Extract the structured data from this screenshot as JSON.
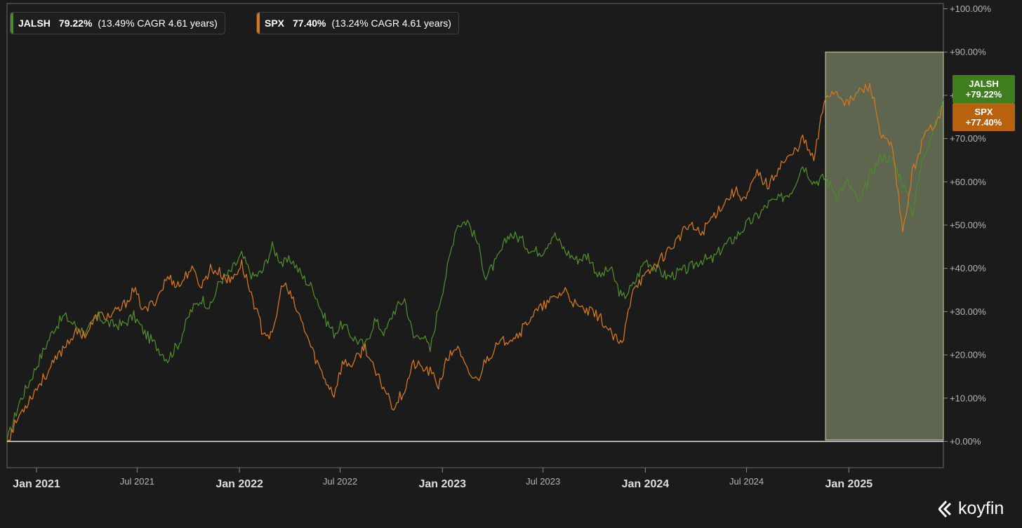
{
  "brand": {
    "name": "koyfin"
  },
  "legend": [
    {
      "name": "JALSH",
      "value": "79.22%",
      "cagr": "(13.49% CAGR 4.61 years)",
      "color": "#4e8a2c"
    },
    {
      "name": "SPX",
      "value": "77.40%",
      "cagr": "(13.24% CAGR 4.61 years)",
      "color": "#d2771d"
    }
  ],
  "tags": [
    {
      "name": "JALSH",
      "value": "+79.22%",
      "color": "#3f7d1e"
    },
    {
      "name": "SPX",
      "value": "+77.40%",
      "color": "#b8620f"
    }
  ],
  "chart_data": {
    "type": "line",
    "title": "",
    "xlabel": "",
    "ylabel": "",
    "ylim": [
      -6,
      102
    ],
    "yticks": [
      0,
      10,
      20,
      30,
      40,
      50,
      60,
      70,
      80,
      90,
      100
    ],
    "ytick_labels": [
      "+0.00%",
      "+10.00%",
      "+20.00%",
      "+30.00%",
      "+40.00%",
      "+50.00%",
      "+60.00%",
      "+70.00%",
      "+80.00%",
      "+90.00%",
      "+100.00%"
    ],
    "x_range": [
      "2020-11-09",
      "2025-06-20"
    ],
    "xticks": [
      {
        "date": "2021-01-01",
        "label": "Jan 2021",
        "major": true
      },
      {
        "date": "2021-07-01",
        "label": "Jul 2021",
        "major": false
      },
      {
        "date": "2022-01-01",
        "label": "Jan 2022",
        "major": true
      },
      {
        "date": "2022-07-01",
        "label": "Jul 2022",
        "major": false
      },
      {
        "date": "2023-01-01",
        "label": "Jan 2023",
        "major": true
      },
      {
        "date": "2023-07-01",
        "label": "Jul 2023",
        "major": false
      },
      {
        "date": "2024-01-01",
        "label": "Jan 2024",
        "major": true
      },
      {
        "date": "2024-07-01",
        "label": "Jul 2024",
        "major": false
      },
      {
        "date": "2025-01-01",
        "label": "Jan 2025",
        "major": true
      }
    ],
    "highlight": {
      "from": "2024-11-20",
      "to": "2025-06-20",
      "ymax": 90
    },
    "series": [
      {
        "name": "JALSH",
        "color": "#4e8a2c",
        "x": [
          "2020-11-09",
          "2020-12-01",
          "2020-12-20",
          "2021-01-10",
          "2021-02-01",
          "2021-02-20",
          "2021-03-10",
          "2021-04-01",
          "2021-04-20",
          "2021-05-15",
          "2021-06-05",
          "2021-06-25",
          "2021-07-15",
          "2021-08-05",
          "2021-08-25",
          "2021-09-15",
          "2021-10-05",
          "2021-10-25",
          "2021-11-10",
          "2021-11-26",
          "2021-12-15",
          "2022-01-05",
          "2022-01-25",
          "2022-02-10",
          "2022-03-01",
          "2022-03-20",
          "2022-04-05",
          "2022-04-25",
          "2022-05-15",
          "2022-06-01",
          "2022-06-20",
          "2022-07-05",
          "2022-07-25",
          "2022-08-15",
          "2022-09-01",
          "2022-09-20",
          "2022-10-05",
          "2022-10-25",
          "2022-11-10",
          "2022-11-25",
          "2022-12-10",
          "2022-12-25",
          "2023-01-10",
          "2023-01-26",
          "2023-02-15",
          "2023-03-05",
          "2023-03-20",
          "2023-04-10",
          "2023-05-01",
          "2023-05-20",
          "2023-06-10",
          "2023-06-30",
          "2023-07-20",
          "2023-08-10",
          "2023-08-30",
          "2023-09-20",
          "2023-10-10",
          "2023-10-30",
          "2023-11-20",
          "2023-12-10",
          "2024-01-01",
          "2024-01-20",
          "2024-02-10",
          "2024-03-01",
          "2024-03-20",
          "2024-04-10",
          "2024-05-01",
          "2024-05-20",
          "2024-06-10",
          "2024-06-30",
          "2024-07-20",
          "2024-08-10",
          "2024-08-30",
          "2024-09-20",
          "2024-10-10",
          "2024-10-30",
          "2024-11-20",
          "2024-12-10",
          "2024-12-30",
          "2025-01-20",
          "2025-02-10",
          "2025-03-01",
          "2025-03-20",
          "2025-04-08",
          "2025-04-25",
          "2025-05-15",
          "2025-06-05",
          "2025-06-20"
        ],
        "values": [
          0,
          9,
          14,
          20,
          26,
          29,
          27,
          25,
          29,
          27,
          27,
          29,
          25,
          22,
          19,
          23,
          30,
          33,
          31,
          37,
          39,
          43,
          38,
          39,
          45,
          41,
          42,
          38,
          35,
          29,
          25,
          27,
          24,
          22,
          28,
          25,
          30,
          33,
          24,
          25,
          21,
          31,
          40,
          50,
          51,
          46,
          38,
          42,
          48,
          47,
          44,
          44,
          48,
          44,
          42,
          43,
          38,
          40,
          33,
          36,
          42,
          40,
          38,
          39,
          40,
          42,
          42,
          45,
          47,
          50,
          52,
          55,
          56,
          58,
          64,
          60,
          61,
          57,
          60,
          55,
          62,
          66,
          65,
          60,
          53,
          66,
          73,
          79.22
        ]
      },
      {
        "name": "SPX",
        "color": "#d2771d",
        "x": [
          "2020-11-09",
          "2020-12-01",
          "2020-12-20",
          "2021-01-10",
          "2021-02-01",
          "2021-02-20",
          "2021-03-10",
          "2021-04-01",
          "2021-04-20",
          "2021-05-15",
          "2021-06-05",
          "2021-06-25",
          "2021-07-15",
          "2021-08-05",
          "2021-08-25",
          "2021-09-15",
          "2021-10-05",
          "2021-10-25",
          "2021-11-10",
          "2021-11-26",
          "2021-12-15",
          "2022-01-05",
          "2022-01-25",
          "2022-02-10",
          "2022-03-01",
          "2022-03-20",
          "2022-04-05",
          "2022-04-25",
          "2022-05-15",
          "2022-06-01",
          "2022-06-20",
          "2022-07-05",
          "2022-07-25",
          "2022-08-15",
          "2022-09-01",
          "2022-09-20",
          "2022-10-05",
          "2022-10-25",
          "2022-11-10",
          "2022-11-25",
          "2022-12-10",
          "2022-12-25",
          "2023-01-10",
          "2023-01-26",
          "2023-02-15",
          "2023-03-05",
          "2023-03-20",
          "2023-04-10",
          "2023-05-01",
          "2023-05-20",
          "2023-06-10",
          "2023-06-30",
          "2023-07-20",
          "2023-08-10",
          "2023-08-30",
          "2023-09-20",
          "2023-10-10",
          "2023-10-30",
          "2023-11-20",
          "2023-12-10",
          "2024-01-01",
          "2024-01-20",
          "2024-02-10",
          "2024-03-01",
          "2024-03-20",
          "2024-04-10",
          "2024-05-01",
          "2024-05-20",
          "2024-06-10",
          "2024-06-30",
          "2024-07-20",
          "2024-08-10",
          "2024-08-30",
          "2024-09-20",
          "2024-10-10",
          "2024-10-30",
          "2024-11-20",
          "2024-12-10",
          "2024-12-30",
          "2025-01-20",
          "2025-02-10",
          "2025-03-01",
          "2025-03-20",
          "2025-04-08",
          "2025-04-25",
          "2025-05-15",
          "2025-06-05",
          "2025-06-20"
        ],
        "values": [
          0,
          6,
          10,
          14,
          18,
          22,
          25,
          25,
          29,
          29,
          31,
          35,
          30,
          33,
          38,
          36,
          40,
          36,
          40,
          39,
          37,
          41,
          33,
          26,
          24,
          37,
          33,
          27,
          20,
          15,
          11,
          18,
          18,
          22,
          16,
          12,
          8,
          12,
          18,
          17,
          16,
          13,
          19,
          22,
          16,
          14,
          19,
          22,
          24,
          25,
          29,
          31,
          33,
          35,
          31,
          30,
          29,
          25,
          22,
          36,
          38,
          41,
          44,
          47,
          50,
          48,
          52,
          55,
          58,
          56,
          62,
          59,
          64,
          66,
          70,
          65,
          80,
          81,
          78,
          81,
          82,
          70,
          68,
          48,
          62,
          70,
          74,
          77.4
        ]
      }
    ]
  }
}
